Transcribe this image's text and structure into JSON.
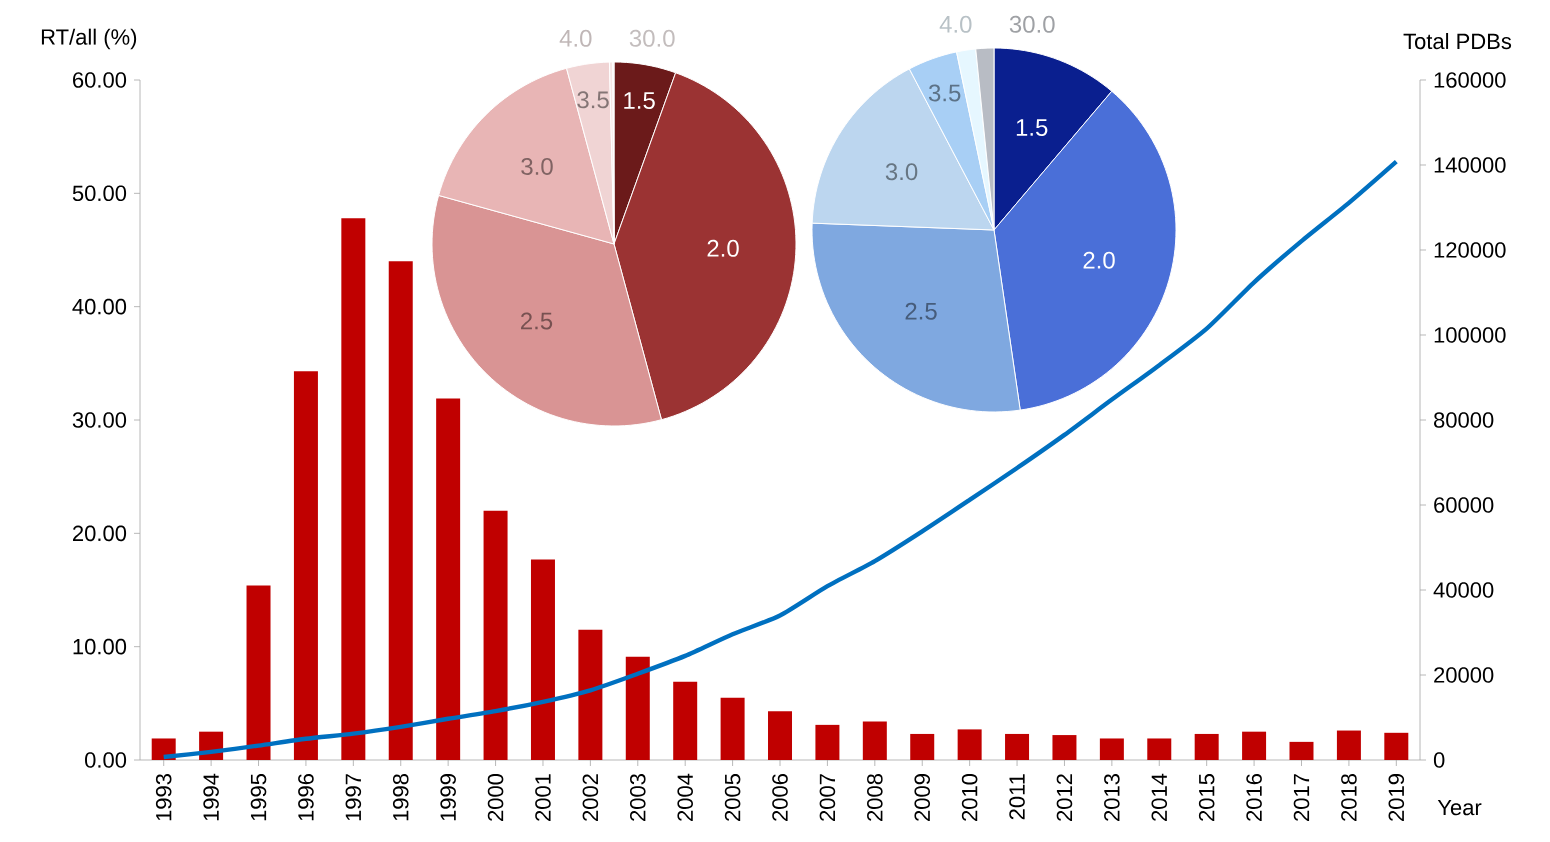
{
  "chart_data": [
    {
      "type": "bar",
      "categories": [
        "1993",
        "1994",
        "1995",
        "1996",
        "1997",
        "1998",
        "1999",
        "2000",
        "2001",
        "2002",
        "2003",
        "2004",
        "2005",
        "2006",
        "2007",
        "2008",
        "2009",
        "2010",
        "2011",
        "2012",
        "2013",
        "2014",
        "2015",
        "2016",
        "2017",
        "2018",
        "2019"
      ],
      "series": [
        {
          "type": "bar",
          "color": "#c00000",
          "values": [
            1.9,
            2.5,
            15.4,
            34.3,
            47.8,
            44.0,
            31.9,
            22.0,
            17.7,
            11.5,
            9.1,
            6.9,
            5.5,
            4.3,
            3.1,
            3.4,
            2.3,
            2.7,
            2.3,
            2.2,
            1.9,
            1.9,
            2.3,
            2.5,
            1.6,
            2.6,
            2.4
          ]
        },
        {
          "type": "line",
          "axis": "y2",
          "color": "#0070c0",
          "values": [
            700,
            1900,
            3400,
            5000,
            6200,
            7800,
            9700,
            11500,
            13700,
            16400,
            20300,
            24500,
            29600,
            34000,
            40900,
            46800,
            53800,
            61200,
            68700,
            76500,
            84800,
            92900,
            101500,
            112400,
            122100,
            131100,
            140800
          ]
        }
      ],
      "xlabel": "Year",
      "ylabel": "RT/all (%)",
      "y2label": "Total PDBs",
      "ylim": [
        0,
        60
      ],
      "yticks": [
        {
          "value": 0,
          "label": "0.00"
        },
        {
          "value": 10,
          "label": "10.00"
        },
        {
          "value": 20,
          "label": "20.00"
        },
        {
          "value": 30,
          "label": "30.00"
        },
        {
          "value": 40,
          "label": "40.00"
        },
        {
          "value": 50,
          "label": "50.00"
        },
        {
          "value": 60,
          "label": "60.00"
        }
      ],
      "y2lim": [
        0,
        160000
      ],
      "y2ticks": [
        0,
        20000,
        40000,
        60000,
        80000,
        100000,
        120000,
        140000,
        160000
      ],
      "marker": "none"
    },
    {
      "type": "pie",
      "categories": [
        "1.5",
        "2.0",
        "2.5",
        "3.0",
        "3.5",
        "4.0",
        "30.0"
      ],
      "values": [
        5.5,
        40.3,
        33.5,
        16.5,
        3.8,
        0.3,
        0.1
      ],
      "colors": [
        "#6b1a1a",
        "#9b3333",
        "#d99494",
        "#e8b5b5",
        "#f0d4d4",
        "#f5e5e5",
        "#faf0f0"
      ]
    },
    {
      "type": "pie",
      "categories": [
        "1.5",
        "2.0",
        "2.5",
        "3.0",
        "3.5",
        "4.0",
        "30.0"
      ],
      "values": [
        11.2,
        36.5,
        27.9,
        16.7,
        4.4,
        1.7,
        1.6
      ],
      "colors": [
        "#0a1f8f",
        "#4a6fd8",
        "#7fa8e0",
        "#bcd6ef",
        "#a8cff5",
        "#e6f7ff",
        "#b8bcc4"
      ]
    }
  ]
}
